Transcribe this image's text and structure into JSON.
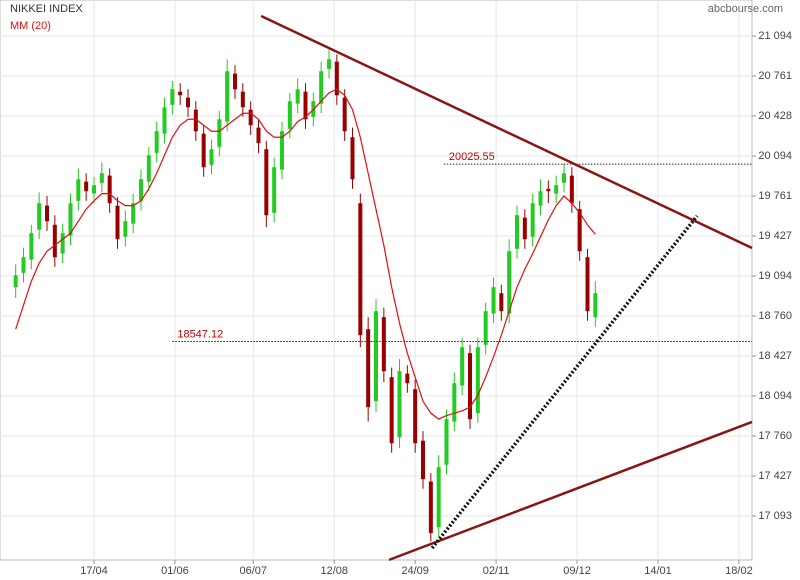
{
  "chart_data": {
    "type": "candlestick",
    "title": "NIKKEI INDEX",
    "source": "abcbourse.com",
    "up_color": "#22cc22",
    "down_color": "#990000",
    "x": [
      6,
      9,
      12,
      15,
      18,
      21,
      24,
      27,
      30,
      33,
      36,
      39,
      42,
      45,
      48,
      51,
      54,
      57,
      60,
      63,
      66,
      69,
      72,
      75,
      78,
      81,
      84,
      87,
      90,
      93,
      96,
      99,
      102,
      105,
      108,
      111,
      114,
      117,
      120,
      123,
      126,
      129,
      132,
      135,
      138,
      141,
      144,
      147,
      150,
      153,
      156,
      159,
      162,
      165,
      168,
      171,
      174,
      177,
      180,
      183,
      186,
      189,
      192,
      195,
      198,
      201,
      204,
      207,
      210,
      213,
      216,
      219,
      222,
      225,
      228
    ],
    "open": [
      19000,
      19120,
      19230,
      19480,
      19680,
      19520,
      19280,
      19430,
      19720,
      19880,
      19780,
      19870,
      19930,
      19680,
      19420,
      19530,
      19720,
      19880,
      20120,
      20280,
      20520,
      20630,
      20580,
      20480,
      20280,
      20020,
      20170,
      20380,
      20780,
      20630,
      20480,
      20330,
      20150,
      19620,
      19980,
      20320,
      20530,
      20630,
      20420,
      20530,
      20820,
      20880,
      20580,
      20250,
      19700,
      18650,
      18050,
      18750,
      18250,
      17750,
      18280,
      18150,
      17720,
      17380,
      17000,
      17520,
      17880,
      18180,
      18450,
      17950,
      18520,
      18780,
      18950,
      18780,
      19320,
      19580,
      19420,
      19680,
      19820,
      19780,
      19870,
      19930,
      19650,
      19250,
      18750
    ],
    "high": [
      19190,
      19330,
      19520,
      19790,
      19760,
      19600,
      19530,
      19780,
      19990,
      19950,
      19920,
      20040,
      19990,
      19750,
      19640,
      19780,
      19980,
      20170,
      20380,
      20580,
      20720,
      20700,
      20650,
      20550,
      20350,
      20230,
      20470,
      20900,
      20850,
      20700,
      20550,
      20400,
      20220,
      20080,
      20380,
      20620,
      20740,
      20700,
      20620,
      20880,
      20980,
      20940,
      20650,
      20330,
      19780,
      18750,
      18900,
      18830,
      18330,
      18400,
      18350,
      18230,
      17800,
      17450,
      17600,
      17980,
      18290,
      18580,
      18520,
      18580,
      18870,
      19080,
      19020,
      19400,
      19680,
      19650,
      19780,
      19900,
      19890,
      19930,
      20030,
      20000,
      19720,
      19320,
      19050
    ],
    "low": [
      18910,
      19040,
      19150,
      19400,
      19470,
      19170,
      19200,
      19350,
      19640,
      19720,
      19700,
      19790,
      19620,
      19320,
      19340,
      19450,
      19640,
      19800,
      20040,
      20200,
      20440,
      20520,
      20420,
      20220,
      19920,
      19940,
      20090,
      20300,
      20570,
      20420,
      20270,
      20120,
      19500,
      19540,
      19900,
      20240,
      20450,
      20320,
      20340,
      20450,
      20740,
      20520,
      20220,
      19820,
      18500,
      17880,
      17960,
      18210,
      17620,
      17660,
      18120,
      17620,
      17320,
      16880,
      16920,
      17440,
      17800,
      18100,
      17820,
      17870,
      18440,
      18700,
      18720,
      18700,
      19240,
      19320,
      19340,
      19600,
      19700,
      19700,
      19790,
      19620,
      19220,
      18720,
      18670
    ],
    "close": [
      19100,
      19250,
      19450,
      19700,
      19550,
      19250,
      19450,
      19700,
      19900,
      19800,
      19850,
      19950,
      19700,
      19400,
      19550,
      19700,
      19900,
      20100,
      20300,
      20500,
      20650,
      20600,
      20500,
      20300,
      20000,
      20150,
      20400,
      20800,
      20650,
      20500,
      20350,
      20200,
      19600,
      20000,
      20300,
      20550,
      20650,
      20400,
      20550,
      20800,
      20900,
      20600,
      20300,
      19900,
      18600,
      18000,
      18800,
      18300,
      17700,
      18300,
      18200,
      17700,
      17400,
      16950,
      17500,
      17900,
      18200,
      18500,
      17900,
      18500,
      18800,
      19000,
      18800,
      19300,
      19600,
      19400,
      19700,
      19800,
      19800,
      19850,
      19950,
      19700,
      19300,
      18800,
      18950
    ],
    "ma": {
      "name": "MM (20)",
      "color": "#e01010",
      "values": [
        18650,
        18850,
        19050,
        19200,
        19300,
        19350,
        19400,
        19450,
        19550,
        19650,
        19720,
        19780,
        19780,
        19720,
        19680,
        19680,
        19720,
        19820,
        19950,
        20100,
        20250,
        20350,
        20400,
        20400,
        20350,
        20300,
        20300,
        20350,
        20400,
        20450,
        20450,
        20400,
        20300,
        20250,
        20250,
        20300,
        20380,
        20420,
        20480,
        20550,
        20620,
        20650,
        20600,
        20480,
        20250,
        19950,
        19650,
        19350,
        19000,
        18700,
        18450,
        18250,
        18050,
        17950,
        17900,
        17930,
        17950,
        17970,
        18000,
        18100,
        18250,
        18420,
        18600,
        18800,
        19000,
        19150,
        19280,
        19420,
        19560,
        19680,
        19760,
        19700,
        19620,
        19520,
        19440
      ]
    },
    "levels": [
      {
        "value": 20025.55,
        "x_start": 170
      },
      {
        "value": 18547.12,
        "x_start": 66
      }
    ],
    "trendlines": [
      {
        "x": [
          100,
          288
        ],
        "y": [
          21261,
          19327
        ],
        "color": "#8b1414",
        "style": "solid"
      },
      {
        "x": [
          149,
          288
        ],
        "y": [
          16727,
          17877
        ],
        "color": "#8b1414",
        "style": "solid"
      },
      {
        "x": [
          165.5,
          267
        ],
        "y": [
          16826,
          19594
        ],
        "color": "#111111",
        "style": "dotted"
      }
    ],
    "xlim": [
      0,
      288
    ],
    "ylim": [
      16726,
      21394
    ],
    "grid": true,
    "xticks": [
      {
        "value": 36,
        "label": "17/04"
      },
      {
        "value": 67,
        "label": "01/06"
      },
      {
        "value": 97,
        "label": "06/07"
      },
      {
        "value": 128,
        "label": "12/08"
      },
      {
        "value": 159,
        "label": "24/09"
      },
      {
        "value": 190,
        "label": "02/11"
      },
      {
        "value": 221,
        "label": "09/12"
      },
      {
        "value": 252,
        "label": "14/01"
      },
      {
        "value": 283,
        "label": "18/02"
      }
    ],
    "yticks": [
      {
        "value": 21094,
        "label": "21 094"
      },
      {
        "value": 20761,
        "label": "20 761"
      },
      {
        "value": 20428,
        "label": "20 428"
      },
      {
        "value": 20094,
        "label": "20 094"
      },
      {
        "value": 19761,
        "label": "19 761"
      },
      {
        "value": 19427,
        "label": "19 427"
      },
      {
        "value": 19094,
        "label": "19 094"
      },
      {
        "value": 18760,
        "label": "18 760"
      },
      {
        "value": 18427,
        "label": "18 427"
      },
      {
        "value": 18094,
        "label": "18 094"
      },
      {
        "value": 17760,
        "label": "17 760"
      },
      {
        "value": 17427,
        "label": "17 427"
      },
      {
        "value": 17093,
        "label": "17 093"
      }
    ]
  }
}
